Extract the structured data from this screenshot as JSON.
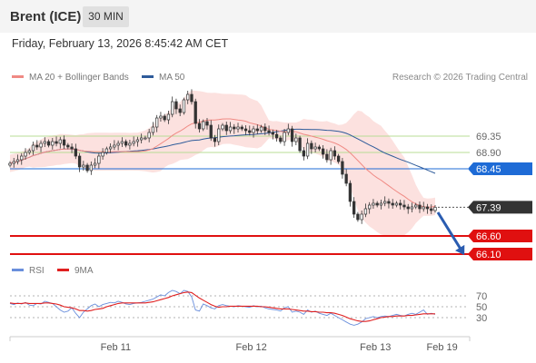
{
  "header": {
    "instrument": "Brent (ICE)",
    "timeframe": "30 MIN"
  },
  "datetime": "Friday, February 13, 2026 8:45:42 AM CET",
  "legend": {
    "ma20_label": "MA 20 + Bollinger Bands",
    "ma50_label": "MA 50",
    "copyright": "Research © 2026 Trading Central",
    "colors": {
      "ma20": "#f08a84",
      "ma50": "#2e5b9a",
      "bands": "#fbd7d4"
    }
  },
  "rsi_legend": {
    "rsi_label": "RSI",
    "ma9_label": "9MA",
    "colors": {
      "rsi": "#6a8fdc",
      "ma9": "#e02020"
    }
  },
  "chart_data": [
    {
      "type": "candlestick",
      "title": "",
      "ylim": [
        65.8,
        71.0
      ],
      "x_ticks": [
        "Feb 11",
        "Feb 12",
        "Feb 13",
        "Feb 19"
      ],
      "x_tick_positions_session": [
        0.23,
        0.525,
        0.795,
        0.94
      ],
      "closes": [
        68.6,
        68.65,
        68.7,
        68.8,
        68.9,
        68.95,
        69.1,
        69.05,
        69.15,
        69.2,
        69.1,
        69.2,
        69.15,
        69.25,
        69.1,
        69.05,
        69.0,
        68.8,
        68.5,
        68.55,
        68.4,
        68.55,
        68.6,
        68.8,
        68.9,
        69.0,
        69.05,
        69.1,
        69.15,
        69.2,
        69.1,
        69.15,
        69.2,
        69.25,
        69.3,
        69.3,
        69.45,
        69.6,
        69.85,
        69.9,
        69.8,
        69.95,
        70.3,
        70.1,
        70.0,
        70.35,
        70.5,
        70.3,
        69.7,
        69.55,
        69.75,
        69.65,
        69.3,
        69.2,
        69.55,
        69.65,
        69.5,
        69.6,
        69.55,
        69.6,
        69.55,
        69.5,
        69.45,
        69.55,
        69.5,
        69.6,
        69.5,
        69.45,
        69.4,
        69.3,
        69.2,
        69.45,
        69.55,
        69.2,
        69.3,
        68.95,
        68.8,
        69.15,
        69.0,
        69.05,
        69.0,
        68.85,
        68.7,
        68.95,
        68.8,
        68.65,
        68.3,
        68.05,
        67.55,
        67.2,
        67.05,
        67.2,
        67.35,
        67.45,
        67.5,
        67.45,
        67.5,
        67.55,
        67.5,
        67.45,
        67.5,
        67.45,
        67.4,
        67.35,
        67.4,
        67.45,
        67.35,
        67.4,
        67.35,
        67.3,
        67.39
      ],
      "levels": [
        {
          "label": "69.35",
          "value": 69.35,
          "kind": "resistance"
        },
        {
          "label": "68.90",
          "value": 68.9,
          "kind": "resistance"
        },
        {
          "label": "68.45",
          "value": 68.45,
          "kind": "pivot"
        },
        {
          "label": "67.39",
          "value": 67.39,
          "kind": "last"
        },
        {
          "label": "66.60",
          "value": 66.6,
          "kind": "support"
        },
        {
          "label": "66.10",
          "value": 66.1,
          "kind": "support"
        }
      ]
    },
    {
      "type": "line",
      "title": "RSI",
      "ylim": [
        0,
        100
      ],
      "y_ticks": [
        "70",
        "50",
        "30"
      ],
      "series": [
        {
          "name": "RSI",
          "values": [
            56,
            54,
            57,
            55,
            58,
            53,
            52,
            56,
            55,
            60,
            58,
            56,
            50,
            44,
            40,
            42,
            48,
            38,
            30,
            40,
            46,
            52,
            55,
            50,
            54,
            56,
            58,
            57,
            60,
            58,
            55,
            54,
            56,
            57,
            58,
            60,
            62,
            64,
            68,
            72,
            70,
            76,
            80,
            78,
            74,
            80,
            78,
            68,
            44,
            42,
            55,
            52,
            48,
            46,
            52,
            54,
            52,
            51,
            50,
            52,
            51,
            50,
            49,
            52,
            50,
            51,
            48,
            46,
            45,
            44,
            42,
            48,
            50,
            40,
            42,
            40,
            36,
            44,
            40,
            42,
            38,
            36,
            34,
            38,
            34,
            30,
            26,
            22,
            18,
            16,
            18,
            22,
            28,
            30,
            32,
            30,
            32,
            33,
            32,
            34,
            36,
            34,
            33,
            36,
            38,
            36,
            40,
            44,
            36,
            38,
            36
          ]
        },
        {
          "name": "9MA",
          "values": [
            57,
            56,
            56,
            56,
            57,
            56,
            56,
            56,
            56,
            57,
            57,
            56,
            55,
            53,
            50,
            49,
            48,
            46,
            43,
            43,
            42,
            43,
            45,
            46,
            47,
            50,
            52,
            54,
            56,
            57,
            57,
            57,
            57,
            57,
            57,
            57,
            58,
            59,
            61,
            63,
            65,
            67,
            70,
            72,
            74,
            76,
            77,
            76,
            71,
            66,
            62,
            58,
            54,
            51,
            49,
            50,
            50,
            51,
            51,
            51,
            51,
            51,
            51,
            51,
            51,
            50,
            50,
            49,
            48,
            47,
            46,
            46,
            46,
            45,
            44,
            43,
            42,
            42,
            41,
            41,
            40,
            40,
            39,
            39,
            38,
            36,
            34,
            31,
            28,
            26,
            24,
            23,
            23,
            24,
            26,
            28,
            30,
            31,
            32,
            32,
            33,
            33,
            33,
            34,
            34,
            35,
            36,
            37,
            37,
            37,
            37
          ]
        }
      ]
    }
  ]
}
